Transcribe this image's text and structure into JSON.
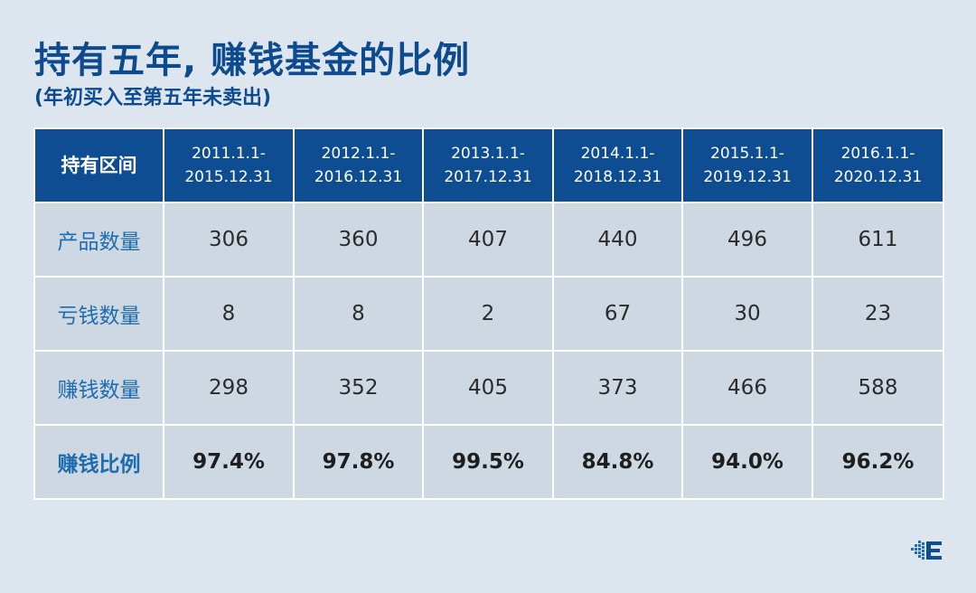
{
  "title": "持有五年, 赚钱基金的比例",
  "subtitle": "(年初买入至第五年未卖出)",
  "chart_data": {
    "type": "table",
    "corner_label": "持有区间",
    "periods": [
      {
        "start": "2011.1.1-",
        "end": "2015.12.31"
      },
      {
        "start": "2012.1.1-",
        "end": "2016.12.31"
      },
      {
        "start": "2013.1.1-",
        "end": "2017.12.31"
      },
      {
        "start": "2014.1.1-",
        "end": "2018.12.31"
      },
      {
        "start": "2015.1.1-",
        "end": "2019.12.31"
      },
      {
        "start": "2016.1.1-",
        "end": "2020.12.31"
      }
    ],
    "rows": [
      {
        "label": "产品数量",
        "values": [
          "306",
          "360",
          "407",
          "440",
          "496",
          "611"
        ]
      },
      {
        "label": "亏钱数量",
        "values": [
          "8",
          "8",
          "2",
          "67",
          "30",
          "23"
        ]
      },
      {
        "label": "赚钱数量",
        "values": [
          "298",
          "352",
          "405",
          "373",
          "466",
          "588"
        ]
      },
      {
        "label": "赚钱比例",
        "values": [
          "97.4%",
          "97.8%",
          "99.5%",
          "84.8%",
          "94.0%",
          "96.2%"
        ]
      }
    ]
  },
  "colors": {
    "header_bg": "#0e4d92",
    "cell_bg": "#cdd8e2",
    "page_bg": "#dde6ee",
    "title": "#0d4a8e",
    "row_label": "#1f6cb0"
  },
  "logo_icon": "brand-logo-icon"
}
